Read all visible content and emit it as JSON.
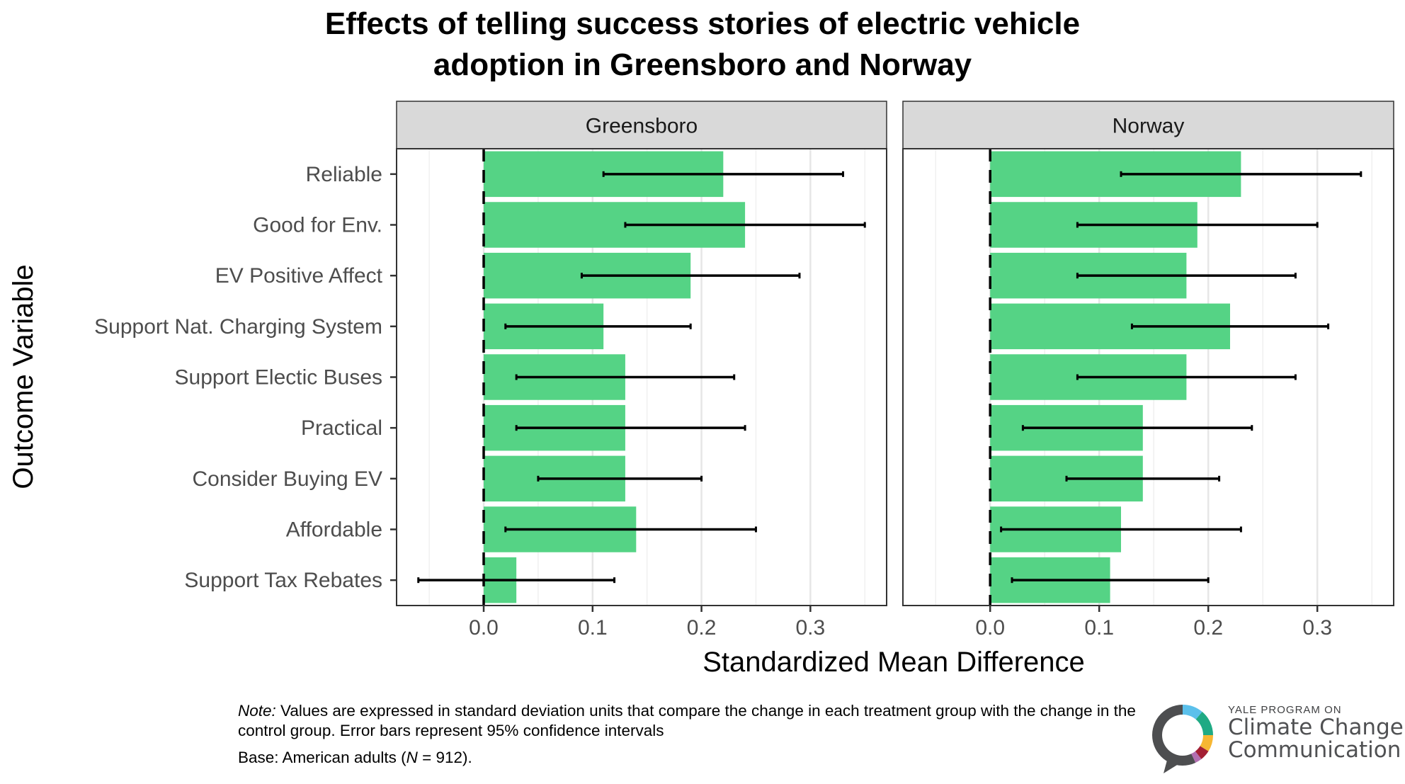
{
  "chart_data": {
    "type": "bar",
    "orientation": "horizontal",
    "title": "Effects of telling success stories of electric vehicle adoption in Greensboro and Norway",
    "title_lines": [
      "Effects of telling success stories of electric vehicle",
      "adoption in Greensboro and Norway"
    ],
    "xlabel": "Standardized Mean Difference",
    "ylabel": "Outcome Variable",
    "xlim": [
      -0.08,
      0.37
    ],
    "xticks": [
      0.0,
      0.1,
      0.2,
      0.3
    ],
    "xtick_labels": [
      "0.0",
      "0.1",
      "0.2",
      "0.3"
    ],
    "minor_gridlines": [
      -0.05,
      0.05,
      0.15,
      0.25,
      0.35
    ],
    "grid": true,
    "reference_line": {
      "x": 0.0,
      "style": "dashed"
    },
    "bar_color": "#52D283",
    "categories": [
      "Reliable",
      "Good for Env.",
      "EV Positive Affect",
      "Support Nat. Charging System",
      "Support Electic Buses",
      "Practical",
      "Consider Buying EV",
      "Affordable",
      "Support Tax Rebates"
    ],
    "panels": [
      {
        "name": "Greensboro",
        "values": [
          0.22,
          0.24,
          0.19,
          0.11,
          0.13,
          0.13,
          0.13,
          0.14,
          0.03
        ],
        "ci_low": [
          0.11,
          0.13,
          0.09,
          0.02,
          0.03,
          0.03,
          0.05,
          0.02,
          -0.06
        ],
        "ci_high": [
          0.33,
          0.35,
          0.29,
          0.19,
          0.23,
          0.24,
          0.2,
          0.25,
          0.12
        ]
      },
      {
        "name": "Norway",
        "values": [
          0.23,
          0.19,
          0.18,
          0.22,
          0.18,
          0.14,
          0.14,
          0.12,
          0.11
        ],
        "ci_low": [
          0.12,
          0.08,
          0.08,
          0.13,
          0.08,
          0.03,
          0.07,
          0.01,
          0.02
        ],
        "ci_high": [
          0.34,
          0.3,
          0.28,
          0.31,
          0.28,
          0.24,
          0.21,
          0.23,
          0.2
        ]
      }
    ],
    "error_bars": "95% confidence intervals"
  },
  "footer": {
    "note_label": "Note:",
    "note_text": " Values are expressed in standard deviation units that compare the change in each treatment group with the change in the control group. Error bars represent 95% confidence intervals",
    "base_prefix": "Base: American adults (",
    "base_n_label": "N",
    "base_suffix": " = 912)."
  },
  "logo": {
    "small_text": "YALE PROGRAM ON",
    "line1": "Climate Change",
    "line2": "Communication",
    "ring_colors": [
      "#5BC0EB",
      "#1FAA84",
      "#F7B733",
      "#A31F34",
      "#B26EB0",
      "#4D4E50"
    ]
  }
}
